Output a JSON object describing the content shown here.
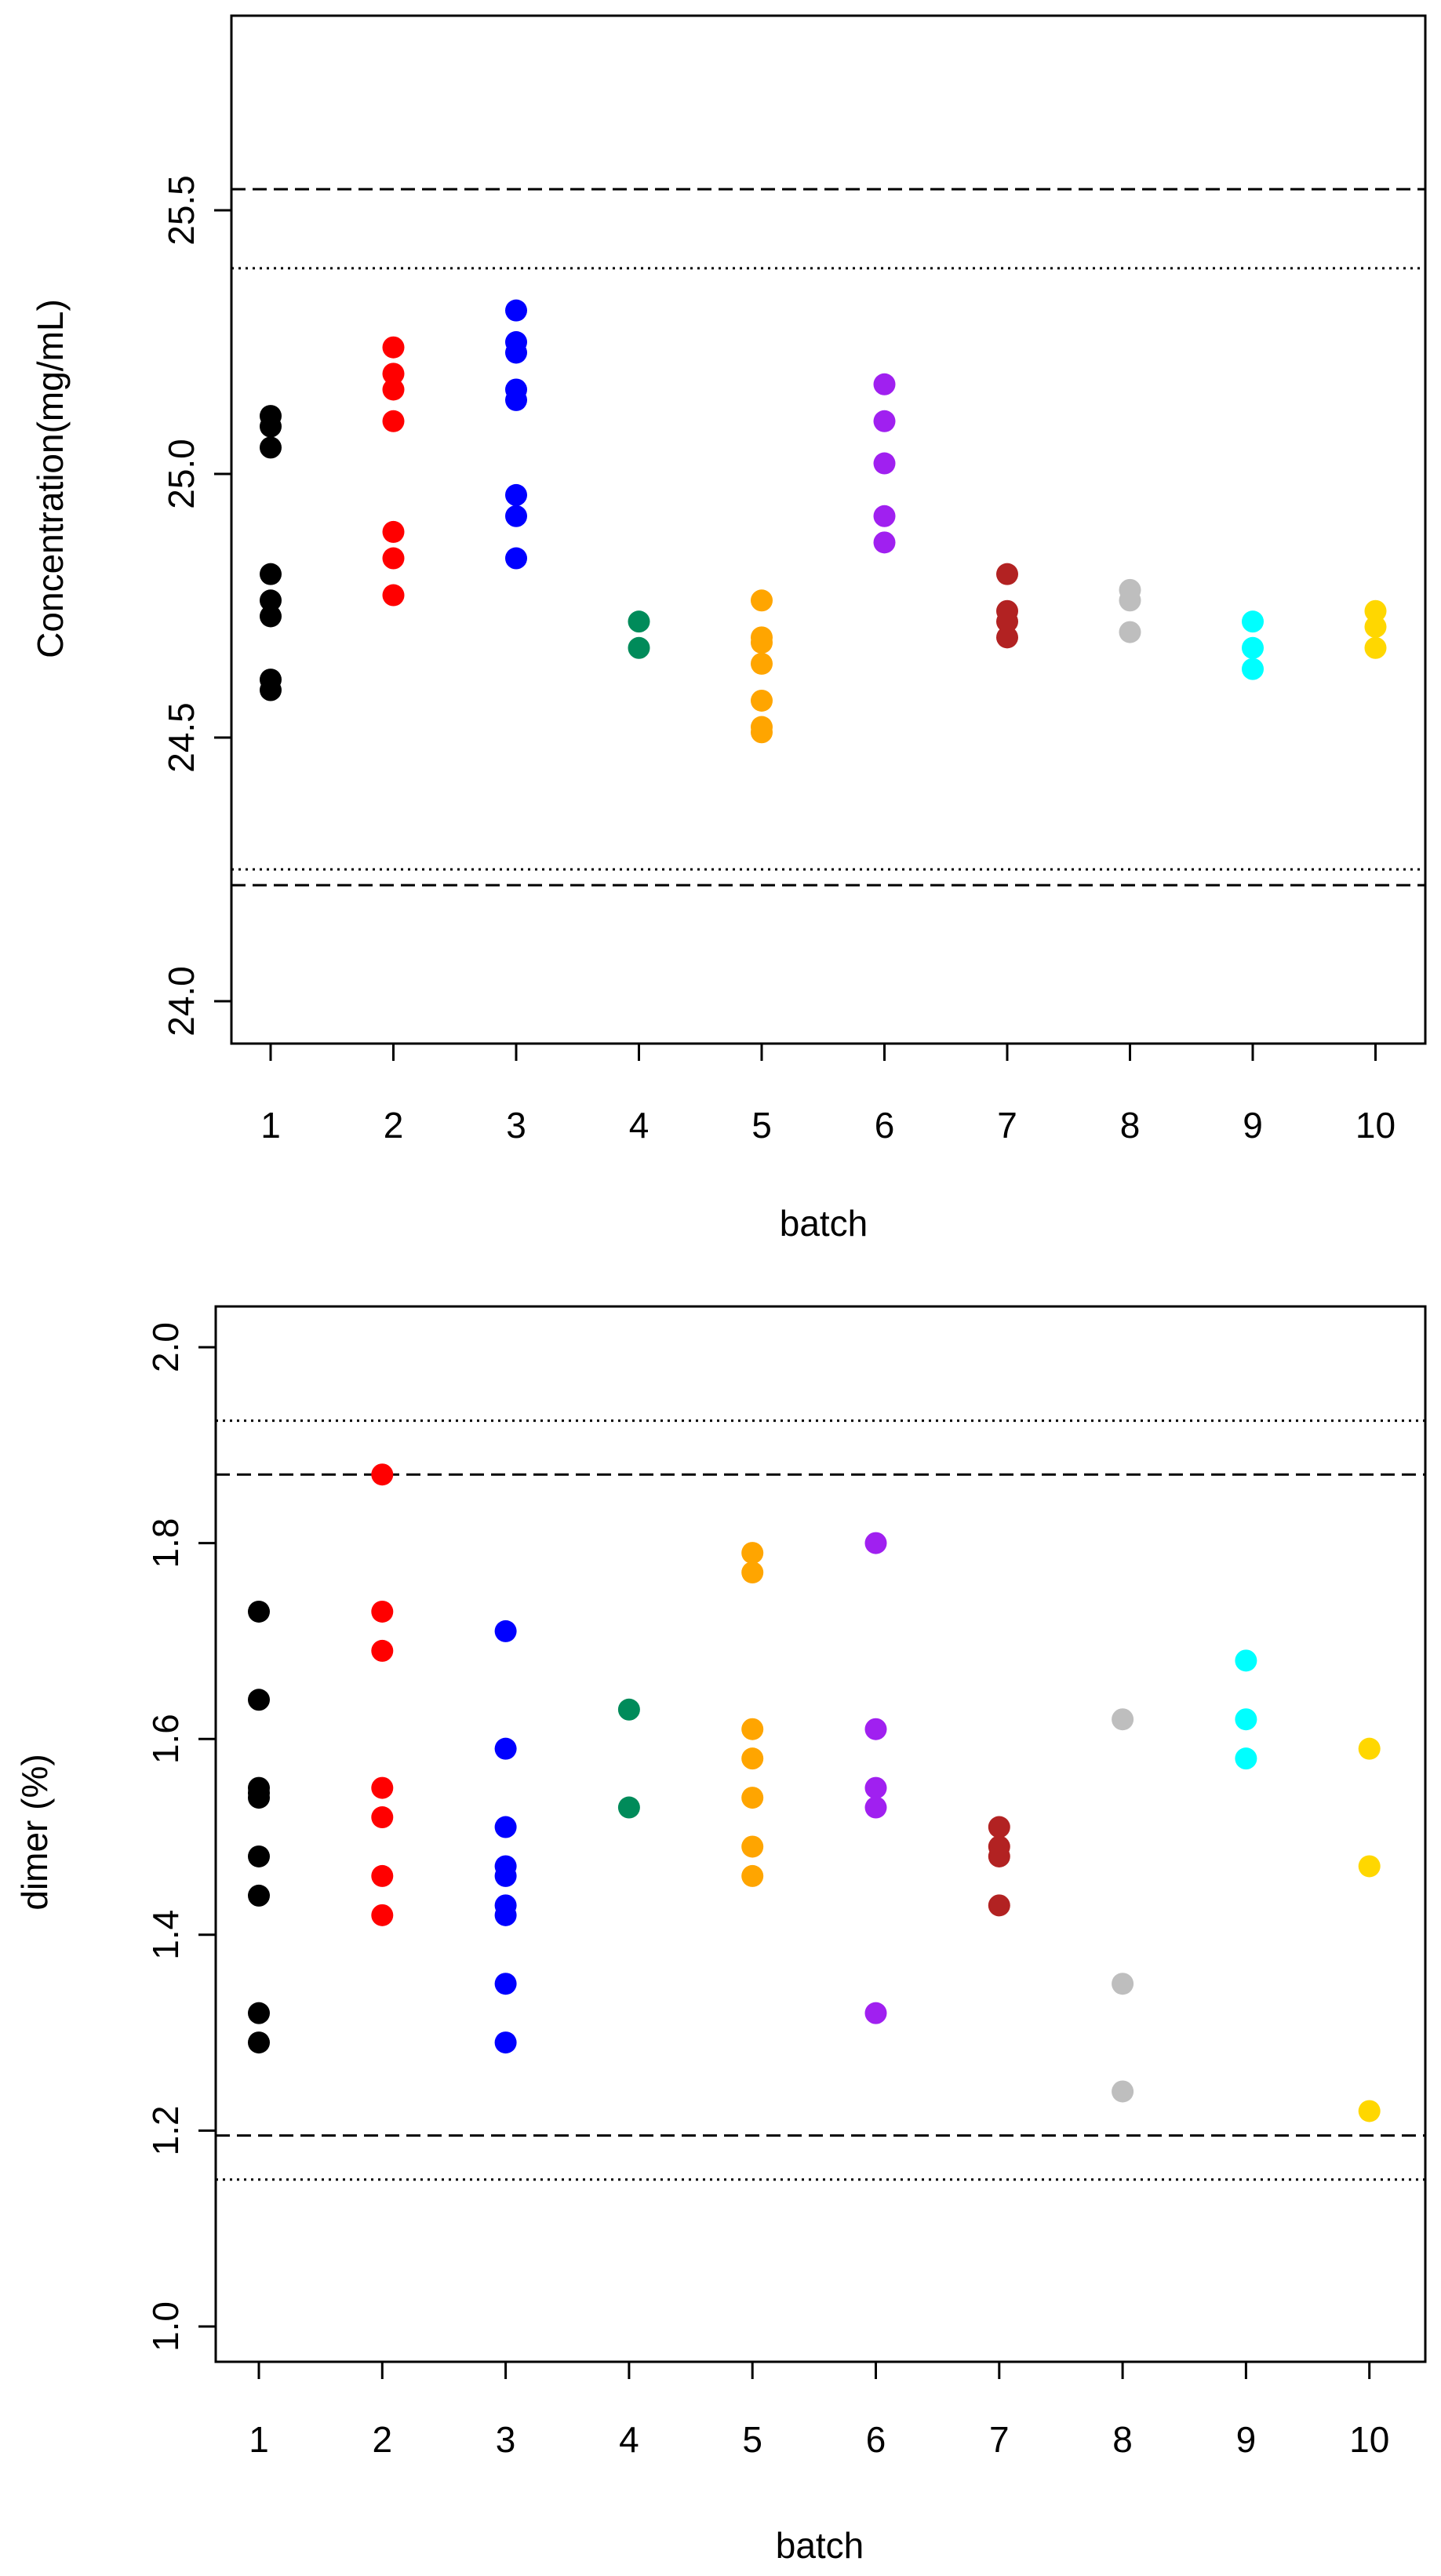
{
  "colors": [
    "#000000",
    "#ff0000",
    "#0000ff",
    "#008b5a",
    "#ffa500",
    "#a020f0",
    "#b22222",
    "#bebebe",
    "#00ffff",
    "#ffd700"
  ],
  "chart_data": [
    {
      "type": "scatter",
      "title": "",
      "xlabel": "batch",
      "ylabel": "Concentration(mg/mL)",
      "x_ticks": [
        "1",
        "2",
        "3",
        "4",
        "5",
        "6",
        "7",
        "8",
        "9",
        "10"
      ],
      "y_ticks": [
        "24.0",
        "24.5",
        "25.0",
        "25.5"
      ],
      "ylim": [
        23.95,
        25.85
      ],
      "grid": false,
      "reference_lines": [
        {
          "y": 25.54,
          "style": "dashed"
        },
        {
          "y": 25.39,
          "style": "dotted"
        },
        {
          "y": 24.25,
          "style": "dotted"
        },
        {
          "y": 24.22,
          "style": "dashed"
        }
      ],
      "series": [
        {
          "batch": 1,
          "values": [
            25.11,
            25.09,
            25.05,
            24.81,
            24.76,
            24.73,
            24.61,
            24.59
          ]
        },
        {
          "batch": 2,
          "values": [
            25.24,
            25.19,
            25.16,
            25.1,
            24.89,
            24.84,
            24.77
          ]
        },
        {
          "batch": 3,
          "values": [
            25.31,
            25.25,
            25.23,
            25.16,
            25.14,
            24.96,
            24.92,
            24.84
          ]
        },
        {
          "batch": 4,
          "values": [
            24.72,
            24.67
          ]
        },
        {
          "batch": 5,
          "values": [
            24.76,
            24.69,
            24.68,
            24.64,
            24.57,
            24.52,
            24.51
          ]
        },
        {
          "batch": 6,
          "values": [
            25.17,
            25.1,
            25.02,
            24.92,
            24.87
          ]
        },
        {
          "batch": 7,
          "values": [
            24.81,
            24.74,
            24.72,
            24.69
          ]
        },
        {
          "batch": 8,
          "values": [
            24.78,
            24.76,
            24.7
          ]
        },
        {
          "batch": 9,
          "values": [
            24.72,
            24.67,
            24.63
          ]
        },
        {
          "batch": 10,
          "values": [
            24.74,
            24.71,
            24.67
          ]
        }
      ]
    },
    {
      "type": "scatter",
      "title": "",
      "xlabel": "batch",
      "ylabel": "dimer (%)",
      "x_ticks": [
        "1",
        "2",
        "3",
        "4",
        "5",
        "6",
        "7",
        "8",
        "9",
        "10"
      ],
      "y_ticks": [
        "1.0",
        "1.2",
        "1.4",
        "1.6",
        "1.8",
        "2.0"
      ],
      "ylim": [
        0.95,
        2.05
      ],
      "grid": false,
      "reference_lines": [
        {
          "y": 1.925,
          "style": "dotted"
        },
        {
          "y": 1.87,
          "style": "dashed"
        },
        {
          "y": 1.195,
          "style": "dashed"
        },
        {
          "y": 1.15,
          "style": "dotted"
        }
      ],
      "series": [
        {
          "batch": 1,
          "values": [
            1.73,
            1.64,
            1.55,
            1.545,
            1.54,
            1.48,
            1.44,
            1.32,
            1.29
          ]
        },
        {
          "batch": 2,
          "values": [
            1.87,
            1.73,
            1.69,
            1.55,
            1.52,
            1.46,
            1.42
          ]
        },
        {
          "batch": 3,
          "values": [
            1.71,
            1.59,
            1.51,
            1.47,
            1.46,
            1.43,
            1.42,
            1.35,
            1.29
          ]
        },
        {
          "batch": 4,
          "values": [
            1.63,
            1.53
          ]
        },
        {
          "batch": 5,
          "values": [
            1.79,
            1.77,
            1.61,
            1.58,
            1.54,
            1.49,
            1.46
          ]
        },
        {
          "batch": 6,
          "values": [
            1.8,
            1.61,
            1.55,
            1.53,
            1.32
          ]
        },
        {
          "batch": 7,
          "values": [
            1.51,
            1.49,
            1.48,
            1.43
          ]
        },
        {
          "batch": 8,
          "values": [
            1.62,
            1.35,
            1.24
          ]
        },
        {
          "batch": 9,
          "values": [
            1.68,
            1.62,
            1.58
          ]
        },
        {
          "batch": 10,
          "values": [
            1.59,
            1.47,
            1.22
          ]
        }
      ]
    }
  ]
}
